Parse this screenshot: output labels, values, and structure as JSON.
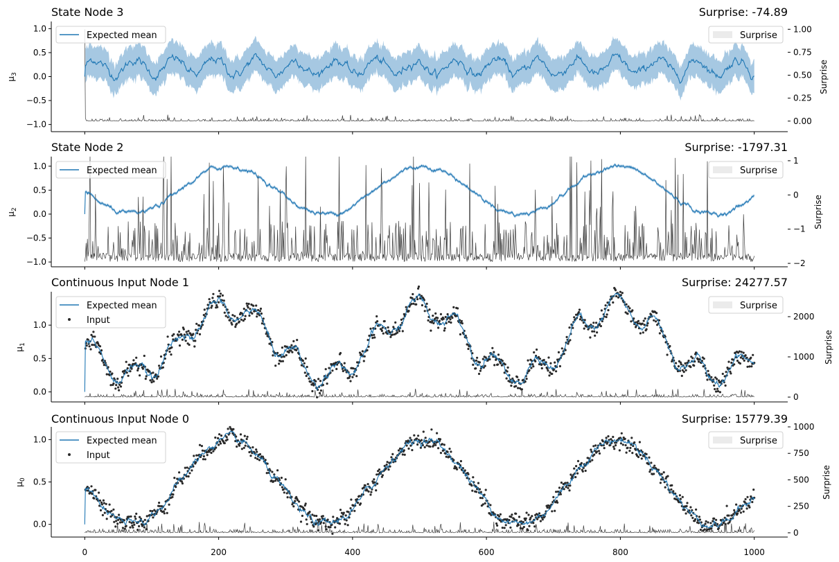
{
  "figure": {
    "x_ticks": [
      "0",
      "200",
      "400",
      "600",
      "800",
      "1000"
    ]
  },
  "chart_data": [
    {
      "type": "line",
      "title": "State Node 3",
      "surprise_label": "Surprise: -74.89",
      "ylabel": "μ₃",
      "ylabel_base": "μ",
      "ylabel_sub": "3",
      "y2label": "Surprise",
      "xlim": [
        -50,
        1050
      ],
      "ylim": [
        -1.15,
        1.15
      ],
      "y2lim": [
        -0.115,
        1.085
      ],
      "yticks": [
        "1.0",
        "0.5",
        "0.0",
        "−0.5",
        "−1.0"
      ],
      "y2ticks": [
        "1.00",
        "0.75",
        "0.50",
        "0.25",
        "0.00"
      ],
      "mean_curve": {
        "base": 0.2,
        "amp": 0.16,
        "period_steps": 60,
        "phase_deg": 0,
        "noise": 0.03
      },
      "band_halfwidth": 0.33,
      "band_wobble": 0.03,
      "surprise_curve": {
        "baseline": 0.0,
        "initial": 1.0,
        "spike_scale": 0.02
      },
      "show_input": false,
      "legend": [
        "Expected mean"
      ],
      "legend2": [
        "Surprise"
      ]
    },
    {
      "type": "line",
      "title": "State Node 2",
      "surprise_label": "Surprise: -1797.31",
      "ylabel": "μ₂",
      "ylabel_base": "μ",
      "ylabel_sub": "2",
      "y2label": "Surprise",
      "xlim": [
        -50,
        1050
      ],
      "ylim": [
        -1.1,
        1.2
      ],
      "y2lim": [
        -2.1,
        1.12
      ],
      "yticks": [
        "1.0",
        "0.5",
        "0.0",
        "−0.5",
        "−1.0"
      ],
      "y2ticks": [
        "1",
        "0",
        "−1",
        "−2"
      ],
      "mean_curve": {
        "base": 0.5,
        "amp": 0.5,
        "period_steps": 290,
        "phase_deg": 0,
        "noise": 0.015
      },
      "band_halfwidth": 0.03,
      "band_wobble": 0.0,
      "surprise_curve": {
        "baseline": -1.95,
        "initial": -1.95,
        "spike_scale": 1.0
      },
      "show_input": false,
      "legend": [
        "Expected mean"
      ],
      "legend2": [
        "Surprise"
      ]
    },
    {
      "type": "line",
      "title": "Continuous Input Node 1",
      "surprise_label": "Surprise: 24277.57",
      "ylabel": "μ₁",
      "ylabel_base": "μ",
      "ylabel_sub": "1",
      "y2label": "Surprise",
      "xlim": [
        -50,
        1050
      ],
      "ylim": [
        -0.15,
        1.5
      ],
      "y2lim": [
        -120,
        2620
      ],
      "yticks": [
        "1.0",
        "0.5",
        "0.0"
      ],
      "y2ticks": [
        "2000",
        "1000",
        "0"
      ],
      "mean_curve": {
        "base": 0.75,
        "amp": 0.5,
        "period_steps": 290,
        "phase_deg": 0,
        "noise": 0.02,
        "amp2": 0.18,
        "period2_steps": 60
      },
      "band_halfwidth": 0.0,
      "band_wobble": 0.0,
      "surprise_curve": {
        "baseline": 0,
        "initial": 0,
        "spike_scale": 60
      },
      "show_input": true,
      "input_noise": 0.06,
      "legend": [
        "Expected mean",
        "Input"
      ],
      "legend2": [
        "Surprise"
      ]
    },
    {
      "type": "line",
      "title": "Continuous Input Node 0",
      "surprise_label": "Surprise: 15779.39",
      "ylabel": "μ₀",
      "ylabel_base": "μ",
      "ylabel_sub": "0",
      "y2label": "Surprise",
      "xlim": [
        -50,
        1050
      ],
      "ylim": [
        -0.15,
        1.15
      ],
      "y2lim": [
        -40,
        1000
      ],
      "yticks": [
        "1.0",
        "0.5",
        "0.0"
      ],
      "y2ticks": [
        "1000",
        "750",
        "500",
        "250",
        "0"
      ],
      "mean_curve": {
        "base": 0.5,
        "amp": 0.5,
        "period_steps": 290,
        "phase_deg": 0,
        "noise": 0.015
      },
      "band_halfwidth": 0.0,
      "band_wobble": 0.0,
      "surprise_curve": {
        "baseline": 0,
        "initial": 0,
        "spike_scale": 30
      },
      "show_input": true,
      "input_noise": 0.045,
      "legend": [
        "Expected mean",
        "Input"
      ],
      "legend2": [
        "Surprise"
      ]
    }
  ],
  "colors": {
    "mean": "#1f77b4",
    "band": "#a6c8e2",
    "surprise": "#3a3a3a",
    "input": "#2a2a2a",
    "axis": "#000000"
  }
}
